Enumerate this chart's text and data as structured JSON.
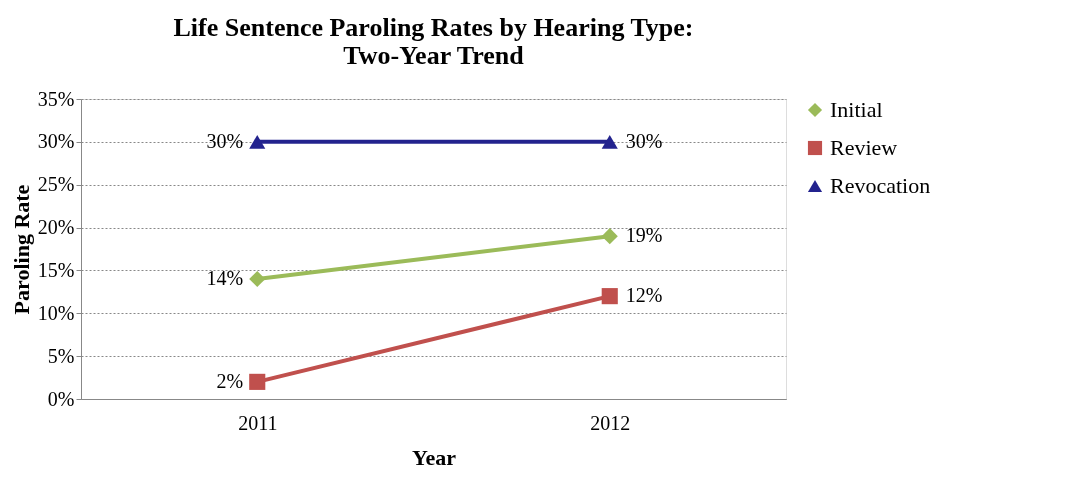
{
  "chart_data": {
    "type": "line",
    "title": "Life Sentence Paroling Rates by Hearing Type:\nTwo-Year Trend",
    "xlabel": "Year",
    "ylabel": "Paroling Rate",
    "categories": [
      "2011",
      "2012"
    ],
    "series": [
      {
        "name": "Initial",
        "color": "#9bbb59",
        "marker": "diamond",
        "values": [
          14,
          19
        ],
        "value_labels": [
          "14%",
          "19%"
        ]
      },
      {
        "name": "Review",
        "color": "#c0504d",
        "marker": "square",
        "values": [
          2,
          12
        ],
        "value_labels": [
          "2%",
          "12%"
        ]
      },
      {
        "name": "Revocation",
        "color": "#23238e",
        "marker": "triangle",
        "values": [
          30,
          30
        ],
        "value_labels": [
          "30%",
          "30%"
        ]
      }
    ],
    "ylim": [
      0,
      35
    ],
    "yticks": [
      {
        "value": 0,
        "label": "0%"
      },
      {
        "value": 5,
        "label": "5%"
      },
      {
        "value": 10,
        "label": "10%"
      },
      {
        "value": 15,
        "label": "15%"
      },
      {
        "value": 20,
        "label": "20%"
      },
      {
        "value": 25,
        "label": "25%"
      },
      {
        "value": 30,
        "label": "30%"
      },
      {
        "value": 35,
        "label": "35%"
      }
    ],
    "grid": "y",
    "legend": "right",
    "line_style": "solid"
  }
}
